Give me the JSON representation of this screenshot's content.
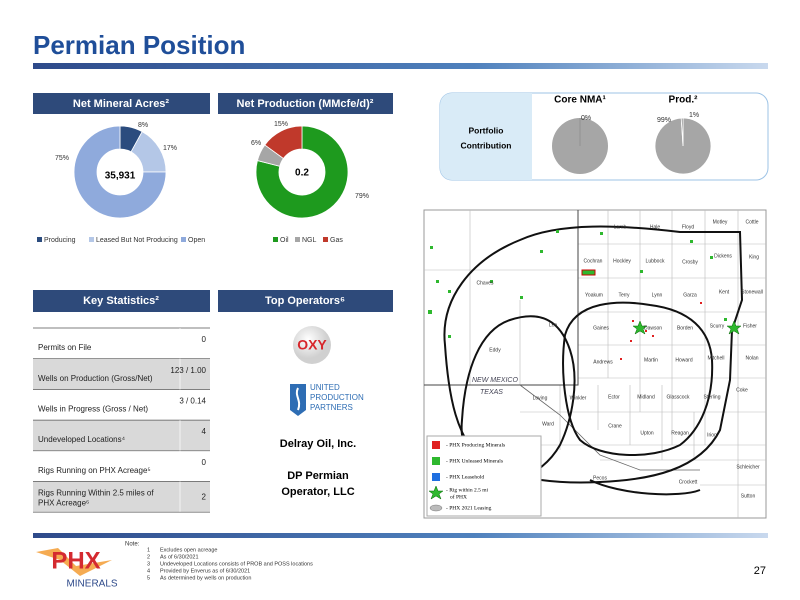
{
  "title": "Permian Position",
  "net_mineral_acres": {
    "header": "Net Mineral Acres²",
    "center": "35,931",
    "categories": [
      "Producing",
      "Leased But Not Producing",
      "Open"
    ],
    "values": [
      8,
      17,
      75
    ],
    "value_labels": [
      "8%",
      "17%",
      "75%"
    ],
    "colors": [
      "#2b4c7e",
      "#b4c7e7",
      "#8faadc"
    ]
  },
  "net_production": {
    "header": "Net Production (MMcfe/d)²",
    "center": "0.2",
    "categories": [
      "Oil",
      "NGL",
      "Gas"
    ],
    "values": [
      79,
      6,
      15
    ],
    "value_labels": [
      "79%",
      "6%",
      "15%"
    ],
    "colors": [
      "#1e9a1e",
      "#a6a6a6",
      "#c0392b"
    ]
  },
  "portfolio": {
    "label_lines": [
      "Portfolio",
      "Contribution"
    ],
    "core": {
      "title": "Core NMA¹",
      "values": [
        0
      ],
      "value_labels": [
        "0%"
      ],
      "colors": [
        "#7f7f7f"
      ]
    },
    "prod": {
      "title": "Prod.²",
      "values": [
        99,
        1
      ],
      "value_labels": [
        "99%",
        "1%"
      ],
      "colors": [
        "#a6a6a6",
        "#7f7f7f"
      ]
    }
  },
  "key_statistics": {
    "header": "Key Statistics²",
    "rows": [
      [
        "Permits on File",
        "0"
      ],
      [
        "Wells on Production (Gross/Net)",
        "123 / 1.00"
      ],
      [
        "Wells in Progress  (Gross / Net)",
        "3 / 0.14"
      ],
      [
        "Undeveloped Locations⁴",
        "4"
      ],
      [
        "Rigs Running on PHX Acreage⁵",
        "0"
      ],
      [
        "Rigs Running Within 2.5 miles of",
        "PHX Acreage⁶",
        "2"
      ]
    ]
  },
  "top_operators": {
    "header": "Top Operators⁶",
    "logos": [
      "OXY",
      "UNITED",
      "PRODUCTION",
      "PARTNERS"
    ],
    "names": [
      "Delray Oil, Inc.",
      "DP Permian",
      "Operator, LLC"
    ]
  },
  "map": {
    "states": [
      "NEW MEXICO",
      "TEXAS"
    ],
    "counties": [
      "Cochran",
      "Hockley",
      "Lubbock",
      "Crosby",
      "Yoakum",
      "Terry",
      "Lynn",
      "Garza",
      "Kent",
      "Gaines",
      "Dawson",
      "Borden",
      "Scurry",
      "Fisher",
      "Andrews",
      "Martin",
      "Howard",
      "Mitchell",
      "Nolan",
      "Loving",
      "Winkler",
      "Ector",
      "Midland",
      "Glasscock",
      "Sterling",
      "Ward",
      "Crane",
      "Upton",
      "Reagan",
      "Irion",
      "Pecos",
      "Crockett",
      "Schleicher",
      "Sutton",
      "Eddy",
      "Lea",
      "Chaves",
      "Lamb",
      "Hale",
      "Floyd",
      "Motley",
      "Cottle",
      "Dickens",
      "King",
      "Stonewall",
      "Coke"
    ],
    "legend": [
      "- PHX Producing Minerals",
      "- PHX Unleased Minerals",
      "- PHX Leasehold",
      "- Rig within 2.5 mi",
      "of PHX",
      "- PHX 2021 Leasing"
    ]
  },
  "notes": {
    "heading": "Note:",
    "items": [
      [
        "1",
        "Excludes open acreage"
      ],
      [
        "2",
        "As of 6/30/2021"
      ],
      [
        "3",
        "Undeveloped Locations consists of PROB and POSS locations"
      ],
      [
        "4",
        "Provided by Enverus as of 6/30/2021"
      ],
      [
        "5",
        "As determined by wells on production"
      ]
    ]
  },
  "logo": {
    "name": "PHX",
    "sub": "MINERALS"
  },
  "page_number": "27"
}
